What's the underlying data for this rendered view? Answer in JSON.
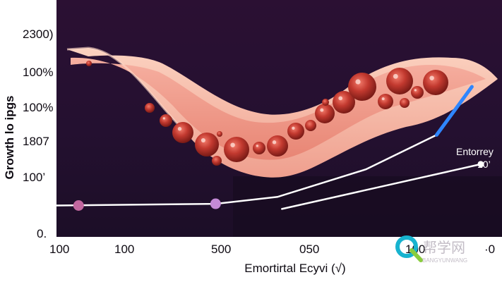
{
  "chart_data": {
    "type": "line",
    "title": "",
    "ylabel": "Growth lo ipgs",
    "xlabel": "Emortirtal Ecyvi (√)",
    "y_tick_labels": [
      "2300)",
      "100%",
      "100%",
      "1807",
      "100’",
      "0."
    ],
    "x_tick_labels": [
      "100",
      "100",
      "500",
      "050",
      "100",
      "·0"
    ],
    "annotations": [
      {
        "text": "Entorrey",
        "series": "curve"
      },
      {
        "text": "10’",
        "series": "curve"
      }
    ],
    "series": [
      {
        "name": "",
        "style": "solid",
        "color": "#ffffff",
        "points": [
          [
            0,
            0.85
          ],
          [
            0.36,
            0.9
          ],
          [
            0.5,
            1.1
          ],
          [
            0.7,
            1.9
          ],
          [
            0.86,
            2.9
          ]
        ]
      },
      {
        "name": "",
        "style": "solid",
        "color": "#ffffff",
        "points": [
          [
            0.51,
            0.75
          ],
          [
            0.96,
            2.05
          ]
        ]
      },
      {
        "name": "",
        "style": "solid",
        "color": "#2f86ff",
        "points": [
          [
            0.86,
            2.9
          ],
          [
            0.94,
            4.3
          ]
        ]
      }
    ],
    "markers": [
      {
        "x": 0.05,
        "y": 0.85,
        "color": "#c2679f"
      },
      {
        "x": 0.36,
        "y": 0.9,
        "color": "#c48ad6"
      },
      {
        "x": 0.96,
        "y": 2.05,
        "color": "#ffffff"
      }
    ],
    "illustration": "blood-vessel-with-cells",
    "grid": false,
    "legend": "none",
    "colors": {
      "background": "#ffffff",
      "panel": "#2a1235",
      "vessel_outer": "#f4b5a0",
      "vessel_inner": "#e9877a",
      "cell": "#b8322c"
    }
  },
  "watermark": {
    "text": "帮学网",
    "subtext": "BANGYUNWANG"
  }
}
